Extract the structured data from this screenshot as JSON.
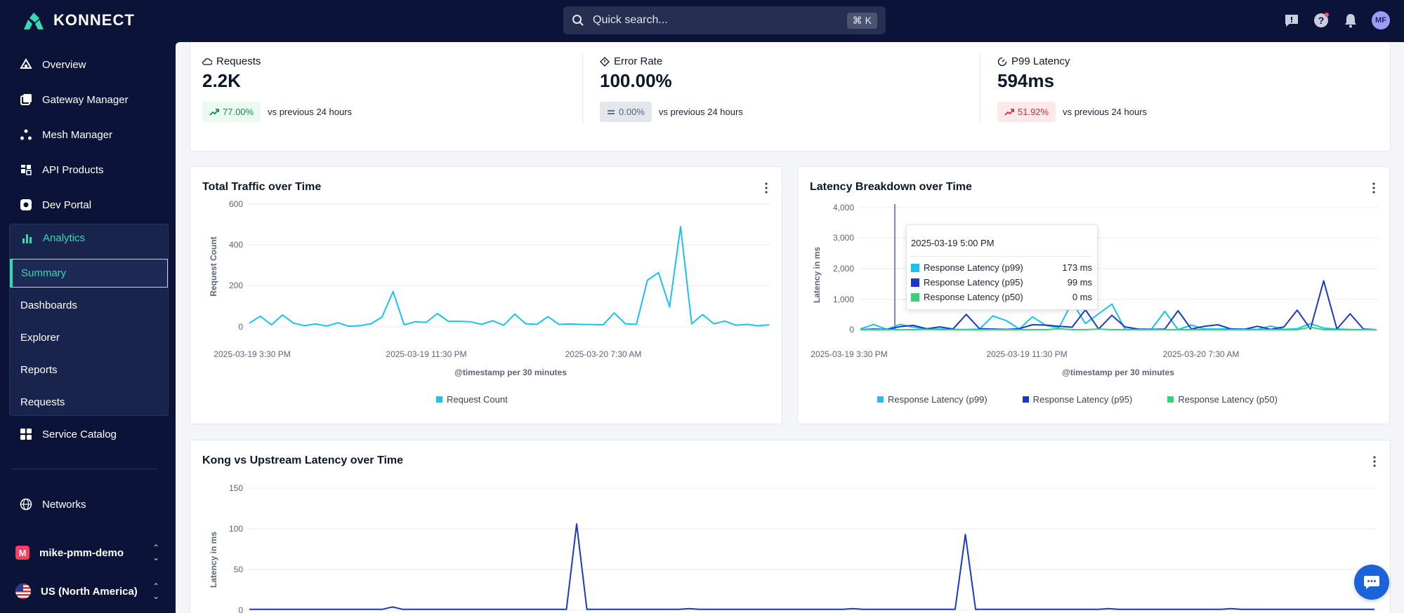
{
  "app": {
    "brand": "KONNECT"
  },
  "search": {
    "placeholder": "Quick search...",
    "shortcut": "⌘ K"
  },
  "user": {
    "initials": "MF"
  },
  "sidebar": {
    "items": [
      {
        "label": "Overview",
        "icon": "overview-icon"
      },
      {
        "label": "Gateway Manager",
        "icon": "gateway-icon"
      },
      {
        "label": "Mesh Manager",
        "icon": "mesh-icon"
      },
      {
        "label": "API Products",
        "icon": "api-products-icon"
      },
      {
        "label": "Dev Portal",
        "icon": "dev-portal-icon"
      }
    ],
    "analytics": {
      "label": "Analytics",
      "sub": [
        "Summary",
        "Dashboards",
        "Explorer",
        "Reports",
        "Requests"
      ],
      "active": "Summary"
    },
    "service_catalog": "Service Catalog",
    "networks": "Networks",
    "org": {
      "initial": "M",
      "name": "mike-pmm-demo"
    },
    "region": "US (North America)"
  },
  "metrics": [
    {
      "label": "Requests",
      "value": "2.2K",
      "change": "77.00%",
      "compare": "vs previous 24 hours",
      "trend": "up",
      "color": "#108a52"
    },
    {
      "label": "Error Rate",
      "value": "100.00%",
      "change": "0.00%",
      "compare": "vs previous 24 hours",
      "trend": "flat",
      "color": "#56607a"
    },
    {
      "label": "P99 Latency",
      "value": "594ms",
      "change": "51.92%",
      "compare": "vs previous 24 hours",
      "trend": "up",
      "color": "#d12c3f"
    }
  ],
  "charts": {
    "traffic": {
      "title": "Total Traffic over Time",
      "ylabel": "Request Count",
      "xlabel": "@timestamp per 30 minutes",
      "yticks": [
        "600",
        "400",
        "200",
        "0"
      ],
      "xticks": [
        "2025-03-19 3:30 PM",
        "2025-03-19 11:30 PM",
        "2025-03-20 7:30 AM"
      ],
      "legend": [
        "Request Count"
      ]
    },
    "latency": {
      "title": "Latency Breakdown over Time",
      "ylabel": "Latency in ms",
      "xlabel": "@timestamp per 30 minutes",
      "yticks": [
        "4,000",
        "3,000",
        "2,000",
        "1,000",
        "0"
      ],
      "xticks": [
        "2025-03-19 3:30 PM",
        "2025-03-19 11:30 PM",
        "2025-03-20 7:30 AM"
      ],
      "legend": [
        "Response Latency (p99)",
        "Response Latency (p95)",
        "Response Latency (p50)"
      ]
    },
    "kong": {
      "title": "Kong vs Upstream Latency over Time",
      "ylabel": "Latency in ms",
      "yticks": [
        "150",
        "100",
        "50",
        "0"
      ]
    }
  },
  "tooltip": {
    "title": "2025-03-19 5:00 PM",
    "rows": [
      {
        "label": "Response Latency (p99)",
        "value": "173 ms",
        "color": "#18c3ec"
      },
      {
        "label": "Response Latency (p95)",
        "value": "99 ms",
        "color": "#1b39c6"
      },
      {
        "label": "Response Latency (p50)",
        "value": "0 ms",
        "color": "#39d07a"
      }
    ]
  },
  "chart_data": [
    {
      "type": "line",
      "title": "Total Traffic over Time",
      "xlabel": "@timestamp per 30 minutes",
      "ylabel": "Request Count",
      "ylim": [
        0,
        600
      ],
      "series": [
        {
          "name": "Request Count",
          "color": "#18c3ec",
          "values": [
            18,
            52,
            10,
            58,
            18,
            6,
            14,
            4,
            20,
            3,
            6,
            15,
            48,
            172,
            10,
            25,
            22,
            65,
            27,
            27,
            25,
            12,
            30,
            8,
            62,
            15,
            12,
            50,
            12,
            14,
            12,
            11,
            10,
            68,
            15,
            12,
            228,
            265,
            97,
            490,
            15,
            60,
            15,
            28,
            8,
            12,
            5,
            10
          ]
        }
      ]
    },
    {
      "type": "line",
      "title": "Latency Breakdown over Time",
      "xlabel": "@timestamp per 30 minutes",
      "ylabel": "Latency in ms",
      "ylim": [
        0,
        4000
      ],
      "series": [
        {
          "name": "Response Latency (p99)",
          "color": "#18c3ec",
          "values": [
            20,
            170,
            10,
            173,
            80,
            15,
            20,
            10,
            5,
            15,
            450,
            300,
            20,
            420,
            140,
            60,
            900,
            200,
            520,
            840,
            10,
            10,
            20,
            600,
            0,
            150,
            20,
            20,
            30,
            20,
            10,
            120,
            10,
            30,
            200,
            50,
            20,
            5,
            0,
            0
          ]
        },
        {
          "name": "Response Latency (p95)",
          "color": "#1b39c6",
          "values": [
            0,
            20,
            5,
            99,
            140,
            30,
            90,
            20,
            500,
            30,
            20,
            10,
            30,
            160,
            150,
            110,
            80,
            650,
            20,
            470,
            90,
            20,
            10,
            20,
            620,
            20,
            110,
            160,
            20,
            10,
            110,
            10,
            90,
            640,
            20,
            1600,
            20,
            520,
            20,
            0
          ]
        },
        {
          "name": "Response Latency (p50)",
          "color": "#39d07a",
          "values": [
            0,
            0,
            0,
            0,
            0,
            10,
            0,
            0,
            0,
            0,
            0,
            0,
            0,
            0,
            0,
            30,
            0,
            0,
            20,
            0,
            0,
            0,
            0,
            0,
            0,
            0,
            0,
            0,
            0,
            0,
            0,
            0,
            0,
            0,
            80,
            0,
            0,
            0,
            0,
            0
          ]
        }
      ]
    },
    {
      "type": "line",
      "title": "Kong vs Upstream Latency over Time",
      "ylabel": "Latency in ms",
      "ylim": [
        0,
        150
      ],
      "series": [
        {
          "color": "#1b39c6",
          "values": [
            1,
            1,
            1,
            1,
            1,
            1,
            1,
            1,
            1,
            1,
            1,
            1,
            1,
            1,
            4,
            1,
            1,
            1,
            1,
            1,
            1,
            1,
            1,
            1,
            1,
            1,
            1,
            1,
            1,
            1,
            1,
            1,
            106,
            1,
            1,
            1,
            1,
            1,
            1,
            1,
            1,
            1,
            1,
            2,
            1,
            1,
            1,
            1,
            1,
            1,
            1,
            1,
            1,
            1,
            1,
            1,
            1,
            1,
            1,
            2,
            1,
            1,
            1,
            1,
            1,
            1,
            1,
            1,
            1,
            1,
            93,
            1,
            1,
            1,
            1,
            1,
            1,
            1,
            1,
            1,
            1,
            1,
            1,
            1,
            2,
            1,
            1,
            1,
            1,
            1,
            1,
            1,
            1,
            1,
            1,
            1,
            2,
            1,
            1,
            1,
            1,
            1,
            1,
            1,
            1,
            1,
            1,
            1,
            1,
            1,
            1
          ]
        }
      ]
    }
  ]
}
